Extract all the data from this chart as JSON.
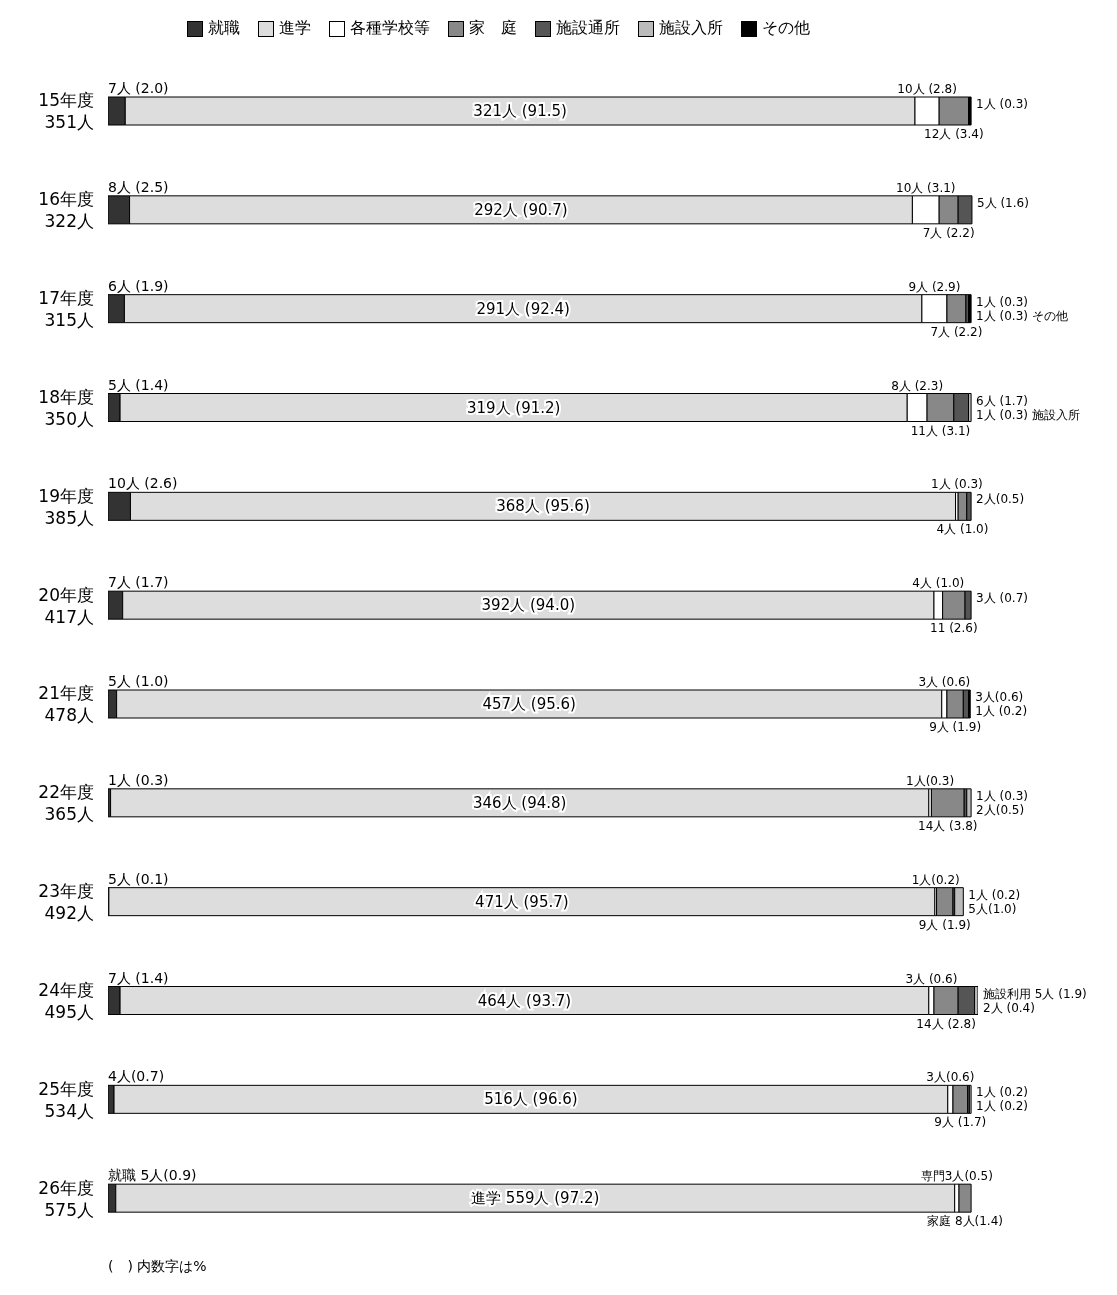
{
  "chart_data": {
    "type": "bar",
    "orientation": "horizontal",
    "stacked": true,
    "legend": "top",
    "categories": [
      "15年度\n351人",
      "16年度\n322人",
      "17年度\n315人",
      "18年度\n350人",
      "19年度\n385人",
      "20年度\n417人",
      "21年度\n478人",
      "22年度\n365人",
      "23年度\n492人",
      "24年度\n495人",
      "25年度\n534人",
      "26年度\n575人"
    ],
    "series": [
      {
        "name": "就職",
        "color": "#333333",
        "values": [
          2.0,
          2.5,
          1.9,
          1.4,
          2.6,
          1.7,
          1.0,
          0.3,
          0.1,
          1.4,
          0.7,
          0.9
        ],
        "value_labels": [
          "7人 (2.0)",
          "8人 (2.5)",
          "6人 (1.9)",
          "5人 (1.4)",
          "10人 (2.6)",
          "7人 (1.7)",
          "5人 (1.0)",
          "1人 (0.3)",
          "5人 (0.1)",
          "7人 (1.4)",
          "4人(0.7)",
          "就職 5人(0.9)"
        ]
      },
      {
        "name": "進学",
        "color": "#dddddd",
        "values": [
          91.5,
          90.7,
          92.4,
          91.2,
          95.6,
          94.0,
          95.6,
          94.8,
          95.7,
          93.7,
          96.6,
          97.2
        ],
        "value_labels": [
          "321人 (91.5)",
          "292人 (90.7)",
          "291人 (92.4)",
          "319人 (91.2)",
          "368人 (95.6)",
          "392人 (94.0)",
          "457人 (95.6)",
          "346人 (94.8)",
          "471人 (95.7)",
          "464人 (93.7)",
          "516人 (96.6)",
          "進学 559人 (97.2)"
        ]
      },
      {
        "name": "各種学校等",
        "color": "#ffffff",
        "values": [
          2.8,
          3.1,
          2.9,
          2.3,
          0.3,
          1.0,
          0.6,
          0.3,
          0.2,
          0.6,
          0.6,
          0.5
        ],
        "value_labels": [
          "10人 (2.8)",
          "10人 (3.1)",
          "9人 (2.9)",
          "8人 (2.3)",
          "1人 (0.3)",
          "4人 (1.0)",
          "3人 (0.6)",
          "1人(0.3)",
          "1人(0.2)",
          "3人 (0.6)",
          "3人(0.6)",
          "専門3人(0.5)"
        ]
      },
      {
        "name": "家　庭",
        "color": "#888888",
        "values": [
          3.4,
          2.2,
          2.2,
          3.1,
          1.0,
          2.6,
          1.9,
          3.8,
          1.9,
          2.8,
          1.7,
          1.4
        ],
        "value_labels": [
          "12人 (3.4)",
          "7人 (2.2)",
          "7人 (2.2)",
          "11人 (3.1)",
          "4人 (1.0)",
          "11 (2.6)",
          "9人 (1.9)",
          "14人 (3.8)",
          "9人 (1.9)",
          "14人 (2.8)",
          "9人 (1.7)",
          "家庭 8人(1.4)"
        ]
      },
      {
        "name": "施設通所",
        "color": "#555555",
        "values": [
          null,
          1.6,
          0.3,
          1.7,
          0.5,
          0.7,
          0.6,
          0.3,
          0.2,
          1.9,
          0.2,
          null
        ],
        "value_labels": [
          null,
          "5人 (1.6)",
          "1人 (0.3)",
          "6人 (1.7)",
          "2人(0.5)",
          "3人 (0.7)",
          "3人(0.6)",
          "1人 (0.3)",
          "1人 (0.2)",
          "施設利用 5人 (1.9)",
          "1人 (0.2)",
          null
        ]
      },
      {
        "name": "施設入所",
        "color": "#bbbbbb",
        "values": [
          null,
          null,
          null,
          0.3,
          null,
          null,
          null,
          0.5,
          1.0,
          0.4,
          0.2,
          null
        ],
        "value_labels": [
          null,
          null,
          null,
          "1人 (0.3) 施設入所",
          null,
          null,
          null,
          "2人(0.5)",
          "5人(1.0)",
          "2人 (0.4)",
          "1人 (0.2)",
          null
        ]
      },
      {
        "name": "その他",
        "color": "#000000",
        "values": [
          0.3,
          null,
          0.3,
          null,
          null,
          null,
          0.2,
          null,
          null,
          null,
          null,
          null
        ],
        "value_labels": [
          "1人 (0.3)",
          null,
          "1人 (0.3) その他",
          null,
          null,
          null,
          "1人 (0.2)",
          null,
          null,
          null,
          null,
          null
        ]
      }
    ],
    "annotations": [
      "(　) 内数字は%"
    ]
  }
}
